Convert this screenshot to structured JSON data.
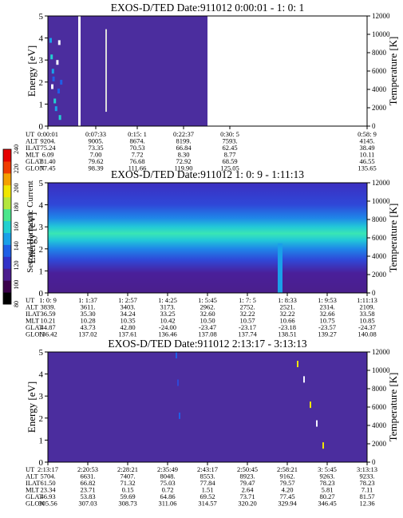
{
  "figure": {
    "colorbar_label": "Second Harmonic Current",
    "colorbar_ticks": [
      "80",
      "100",
      "120",
      "140",
      "160",
      "180",
      "200",
      "220",
      "240"
    ],
    "colorbar_colors": [
      "#000000",
      "#3a004a",
      "#4b1d8e",
      "#3232c8",
      "#1f5fe6",
      "#1aa0e8",
      "#22d0d0",
      "#4be68c",
      "#b4e63c",
      "#f0e600",
      "#f4a000",
      "#f03c00",
      "#e60000"
    ],
    "row_labels": [
      "UT",
      "ALT",
      "ILAT",
      "MLT",
      "GLAT",
      "GLON"
    ]
  },
  "chart_data": [
    {
      "type": "heatmap",
      "title": "EXOS-D/TED   Date:911012  0:00:01 - 1: 0: 1",
      "ylabel": "Energy [eV]",
      "ylabel_right": "Temperature [K]",
      "ylim": [
        0,
        5
      ],
      "yticks": [
        "0",
        "1",
        "2",
        "3",
        "4",
        "5"
      ],
      "ylim_right": [
        0,
        12000
      ],
      "yticks_right": [
        "0",
        "2000",
        "4000",
        "6000",
        "8000",
        "10000",
        "12000"
      ],
      "data_coverage_fraction": 0.5,
      "table_columns": [
        [
          "0:00:01",
          "9204.",
          "75.24",
          "6.09",
          "81.40",
          "77.45"
        ],
        [
          "0:07:33",
          "9005.",
          "73.35",
          "7.00",
          "79.62",
          "98.39"
        ],
        [
          "0:15: 1",
          "8674.",
          "70.53",
          "7.72",
          "76.68",
          "111.66"
        ],
        [
          "0:22:37",
          "8199.",
          "66.84",
          "8.30",
          "72.92",
          "119.90"
        ],
        [
          "0:30: 5",
          "7593.",
          "62.45",
          "8.77",
          "68.59",
          "125.05"
        ],
        [
          "0:58: 9",
          "4145.",
          "38.49",
          "10.11",
          "46.55",
          "135.65"
        ]
      ]
    },
    {
      "type": "heatmap",
      "title": "EXOS-D/TED   Date:911012  1: 0: 9 - 1:11:13",
      "ylabel": "Energy [eV]",
      "ylabel_right": "Temperature [K]",
      "ylim": [
        0,
        5
      ],
      "yticks": [
        "0",
        "1",
        "2",
        "3",
        "4",
        "5"
      ],
      "ylim_right": [
        0,
        12000
      ],
      "yticks_right": [
        "0",
        "2000",
        "4000",
        "6000",
        "8000",
        "10000",
        "12000"
      ],
      "table_columns": [
        [
          "1: 0: 9",
          "3839.",
          "36.59",
          "10.21",
          "44.87",
          "136.42"
        ],
        [
          "1: 1:37",
          "3611.",
          "35.30",
          "10.28",
          "43.73",
          "137.02"
        ],
        [
          "1: 2:57",
          "3403.",
          "34.24",
          "10.35",
          "42.80",
          "137.61"
        ],
        [
          "1: 4:25",
          "3173.",
          "33.25",
          "10.42",
          "-24.00",
          "136.46"
        ],
        [
          "1: 5:45",
          "2962.",
          "32.60",
          "10.50",
          "-23.47",
          "137.08"
        ],
        [
          "1: 7: 5",
          "2752.",
          "32.22",
          "10.57",
          "-23.17",
          "137.74"
        ],
        [
          "1: 8:33",
          "2521.",
          "32.22",
          "10.66",
          "-23.18",
          "138.51"
        ],
        [
          "1: 9:53",
          "2314.",
          "32.66",
          "10.75",
          "-23.57",
          "139.27"
        ],
        [
          "1:11:13",
          "2109.",
          "33.58",
          "10.85",
          "-24.37",
          "140.08"
        ]
      ]
    },
    {
      "type": "heatmap",
      "title": "EXOS-D/TED   Date:911012  2:13:17 - 3:13:13",
      "ylabel": "Energy [eV]",
      "ylabel_right": "Temperature [K]",
      "ylim": [
        0,
        5
      ],
      "yticks": [
        "0",
        "1",
        "2",
        "3",
        "4",
        "5"
      ],
      "ylim_right": [
        0,
        12000
      ],
      "yticks_right": [
        "0",
        "2000",
        "4000",
        "6000",
        "8000",
        "10000",
        "12000"
      ],
      "table_columns": [
        [
          "2:13:17",
          "5704.",
          "61.50",
          "23.34",
          "46.93",
          "305.56"
        ],
        [
          "2:20:53",
          "6631.",
          "66.82",
          "23.71",
          "53.83",
          "307.03"
        ],
        [
          "2:28:21",
          "7407.",
          "71.32",
          "0.15",
          "59.69",
          "308.73"
        ],
        [
          "2:35:49",
          "8048.",
          "75.03",
          "0.72",
          "64.86",
          "311.06"
        ],
        [
          "2:43:17",
          "8553.",
          "77.84",
          "1.51",
          "69.52",
          "314.57"
        ],
        [
          "2:50:45",
          "8923.",
          "79.47",
          "2.64",
          "73.71",
          "320.20"
        ],
        [
          "2:58:21",
          "9162.",
          "79.57",
          "4.20",
          "77.45",
          "329.94"
        ],
        [
          "3: 5:45",
          "9263.",
          "78.23",
          "5.81",
          "80.27",
          "346.45"
        ],
        [
          "3:13:13",
          "9233.",
          "78.23",
          "7.11",
          "81.57",
          "12.36"
        ]
      ]
    }
  ]
}
